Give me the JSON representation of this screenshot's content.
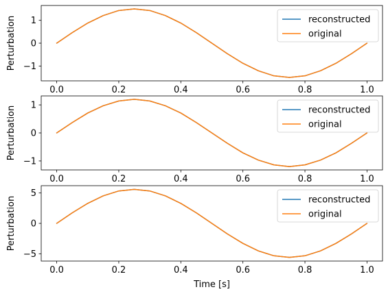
{
  "chart_data": [
    {
      "type": "line",
      "title": "",
      "xlabel": "",
      "ylabel": "Perturbation",
      "xlim": [
        -0.05,
        1.05
      ],
      "ylim": [
        -1.65,
        1.65
      ],
      "xticks": [
        0.0,
        0.2,
        0.4,
        0.6,
        0.8,
        1.0
      ],
      "xtick_labels": [
        "0.0",
        "0.2",
        "0.4",
        "0.6",
        "0.8",
        "1.0"
      ],
      "yticks": [
        -1,
        0,
        1
      ],
      "ytick_labels": [
        "−1",
        "0",
        "1"
      ],
      "grid": false,
      "legend_position": "upper right",
      "series": [
        {
          "name": "reconstructed",
          "color": "#1f77b4",
          "x": [
            0.0,
            0.05,
            0.1,
            0.15,
            0.2,
            0.25,
            0.3,
            0.35,
            0.4,
            0.45,
            0.5,
            0.55,
            0.6,
            0.65,
            0.7,
            0.75,
            0.8,
            0.85,
            0.9,
            0.95,
            1.0
          ],
          "y": [
            0.0,
            0.46,
            0.88,
            1.21,
            1.43,
            1.5,
            1.43,
            1.21,
            0.88,
            0.46,
            0.0,
            -0.46,
            -0.88,
            -1.21,
            -1.43,
            -1.5,
            -1.43,
            -1.21,
            -0.88,
            -0.46,
            0.0
          ]
        },
        {
          "name": "original",
          "color": "#ff7f0e",
          "x": [
            0.0,
            0.05,
            0.1,
            0.15,
            0.2,
            0.25,
            0.3,
            0.35,
            0.4,
            0.45,
            0.5,
            0.55,
            0.6,
            0.65,
            0.7,
            0.75,
            0.8,
            0.85,
            0.9,
            0.95,
            1.0
          ],
          "y": [
            0.0,
            0.46,
            0.88,
            1.21,
            1.43,
            1.5,
            1.43,
            1.21,
            0.88,
            0.46,
            0.0,
            -0.46,
            -0.88,
            -1.21,
            -1.43,
            -1.5,
            -1.43,
            -1.21,
            -0.88,
            -0.46,
            0.0
          ]
        }
      ]
    },
    {
      "type": "line",
      "title": "",
      "xlabel": "",
      "ylabel": "Perturbation",
      "xlim": [
        -0.05,
        1.05
      ],
      "ylim": [
        -1.32,
        1.32
      ],
      "xticks": [
        0.0,
        0.2,
        0.4,
        0.6,
        0.8,
        1.0
      ],
      "xtick_labels": [
        "0.0",
        "0.2",
        "0.4",
        "0.6",
        "0.8",
        "1.0"
      ],
      "yticks": [
        -1,
        0,
        1
      ],
      "ytick_labels": [
        "−1",
        "0",
        "1"
      ],
      "grid": false,
      "legend_position": "upper right",
      "series": [
        {
          "name": "reconstructed",
          "color": "#1f77b4",
          "x": [
            0.0,
            0.05,
            0.1,
            0.15,
            0.2,
            0.25,
            0.3,
            0.35,
            0.4,
            0.45,
            0.5,
            0.55,
            0.6,
            0.65,
            0.7,
            0.75,
            0.8,
            0.85,
            0.9,
            0.95,
            1.0
          ],
          "y": [
            0.0,
            0.37,
            0.71,
            0.97,
            1.14,
            1.2,
            1.14,
            0.97,
            0.71,
            0.37,
            0.0,
            -0.37,
            -0.71,
            -0.97,
            -1.14,
            -1.2,
            -1.14,
            -0.97,
            -0.71,
            -0.37,
            0.0
          ]
        },
        {
          "name": "original",
          "color": "#ff7f0e",
          "x": [
            0.0,
            0.05,
            0.1,
            0.15,
            0.2,
            0.25,
            0.3,
            0.35,
            0.4,
            0.45,
            0.5,
            0.55,
            0.6,
            0.65,
            0.7,
            0.75,
            0.8,
            0.85,
            0.9,
            0.95,
            1.0
          ],
          "y": [
            0.0,
            0.37,
            0.71,
            0.97,
            1.14,
            1.2,
            1.14,
            0.97,
            0.71,
            0.37,
            0.0,
            -0.37,
            -0.71,
            -0.97,
            -1.14,
            -1.2,
            -1.14,
            -0.97,
            -0.71,
            -0.37,
            0.0
          ]
        }
      ]
    },
    {
      "type": "line",
      "title": "",
      "xlabel": "Time [s]",
      "ylabel": "Perturbation",
      "xlim": [
        -0.05,
        1.05
      ],
      "ylim": [
        -6.2,
        6.2
      ],
      "xticks": [
        0.0,
        0.2,
        0.4,
        0.6,
        0.8,
        1.0
      ],
      "xtick_labels": [
        "0.0",
        "0.2",
        "0.4",
        "0.6",
        "0.8",
        "1.0"
      ],
      "yticks": [
        -5,
        0,
        5
      ],
      "ytick_labels": [
        "−5",
        "0",
        "5"
      ],
      "grid": false,
      "legend_position": "upper right",
      "series": [
        {
          "name": "reconstructed",
          "color": "#1f77b4",
          "x": [
            0.0,
            0.05,
            0.1,
            0.15,
            0.2,
            0.25,
            0.3,
            0.35,
            0.4,
            0.45,
            0.5,
            0.55,
            0.6,
            0.65,
            0.7,
            0.75,
            0.8,
            0.85,
            0.9,
            0.95,
            1.0
          ],
          "y": [
            0.0,
            1.73,
            3.29,
            4.53,
            5.33,
            5.6,
            5.33,
            4.53,
            3.29,
            1.73,
            0.0,
            -1.73,
            -3.29,
            -4.53,
            -5.33,
            -5.6,
            -5.33,
            -4.53,
            -3.29,
            -1.73,
            0.0
          ]
        },
        {
          "name": "original",
          "color": "#ff7f0e",
          "x": [
            0.0,
            0.05,
            0.1,
            0.15,
            0.2,
            0.25,
            0.3,
            0.35,
            0.4,
            0.45,
            0.5,
            0.55,
            0.6,
            0.65,
            0.7,
            0.75,
            0.8,
            0.85,
            0.9,
            0.95,
            1.0
          ],
          "y": [
            0.0,
            1.73,
            3.29,
            4.53,
            5.33,
            5.6,
            5.33,
            4.53,
            3.29,
            1.73,
            0.0,
            -1.73,
            -3.29,
            -4.53,
            -5.33,
            -5.6,
            -5.33,
            -4.53,
            -3.29,
            -1.73,
            0.0
          ]
        }
      ]
    }
  ]
}
